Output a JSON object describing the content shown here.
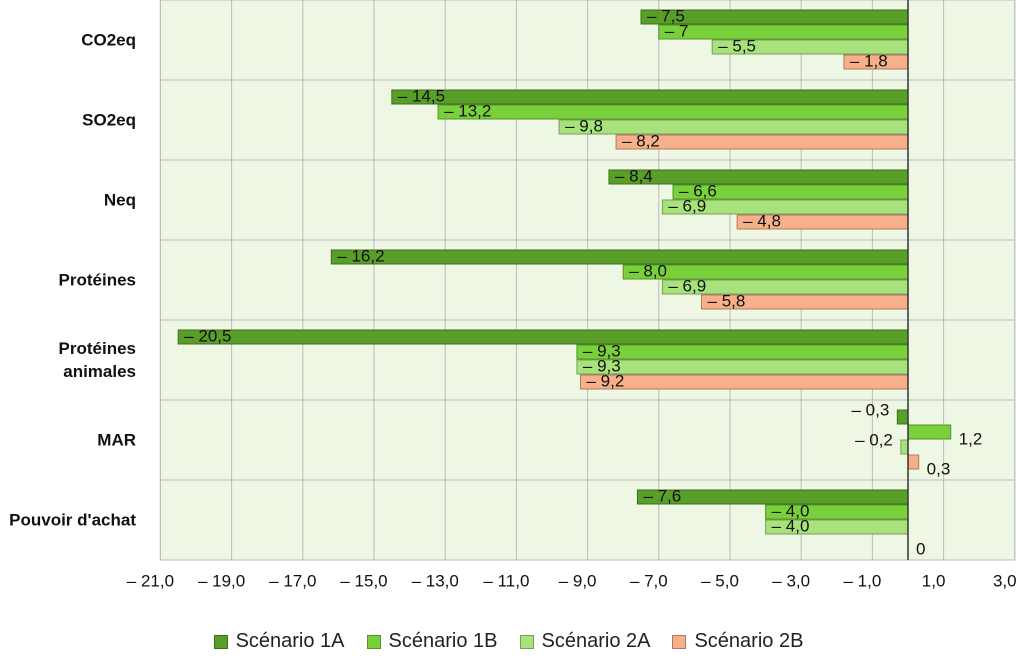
{
  "chart_data": {
    "type": "bar",
    "orientation": "horizontal",
    "categories": [
      "CO2eq",
      "SO2eq",
      "Neq",
      "Protéines",
      "Protéines animales",
      "MAR",
      "Pouvoir d'achat"
    ],
    "series": [
      {
        "name": "Scénario 1A",
        "color": "#5a9e2a",
        "values": [
          -7.5,
          -14.5,
          -8.4,
          -16.2,
          -20.5,
          -0.3,
          -7.6
        ],
        "value_labels": [
          "– 7,5",
          "– 14,5",
          "– 8,4",
          "– 16,2",
          "– 20,5",
          "– 0,3",
          "– 7,6"
        ]
      },
      {
        "name": "Scénario 1B",
        "color": "#7ad03a",
        "values": [
          -7,
          -13.2,
          -6.6,
          -8.0,
          -9.3,
          1.2,
          -4.0
        ],
        "value_labels": [
          "– 7",
          "– 13,2",
          "– 6,6",
          "– 8,0",
          "– 9,3",
          "1,2",
          "– 4,0"
        ]
      },
      {
        "name": "Scénario 2A",
        "color": "#a8e27c",
        "values": [
          -5.5,
          -9.8,
          -6.9,
          -6.9,
          -9.3,
          -0.2,
          -4.0
        ],
        "value_labels": [
          "– 5,5",
          "– 9,8",
          "– 6,9",
          "– 6,9",
          "– 9,3",
          "– 0,2",
          "– 4,0"
        ]
      },
      {
        "name": "Scénario 2B",
        "color": "#f7b08a",
        "values": [
          -1.8,
          -8.2,
          -4.8,
          -5.8,
          -9.2,
          0.3,
          0
        ],
        "value_labels": [
          "– 1,8",
          "– 8,2",
          "– 4,8",
          "– 5,8",
          "– 9,2",
          "0,3",
          "0"
        ]
      }
    ],
    "xlim": [
      -21,
      3
    ],
    "xticks": [
      {
        "value": -21,
        "label": "– 21,0"
      },
      {
        "value": -19,
        "label": "– 19,0"
      },
      {
        "value": -17,
        "label": "– 17,0"
      },
      {
        "value": -15,
        "label": "– 15,0"
      },
      {
        "value": -13,
        "label": "– 13,0"
      },
      {
        "value": -11,
        "label": "– 11,0"
      },
      {
        "value": -9,
        "label": "– 9,0"
      },
      {
        "value": -7,
        "label": "– 7,0"
      },
      {
        "value": -5,
        "label": "– 5,0"
      },
      {
        "value": -3,
        "label": "– 3,0"
      },
      {
        "value": -1,
        "label": "– 1,0"
      },
      {
        "value": 1,
        "label": "1,0"
      },
      {
        "value": 3,
        "label": "3,0"
      }
    ],
    "grid": true,
    "legend": "bottom",
    "plot_background": "#eef7e4"
  }
}
